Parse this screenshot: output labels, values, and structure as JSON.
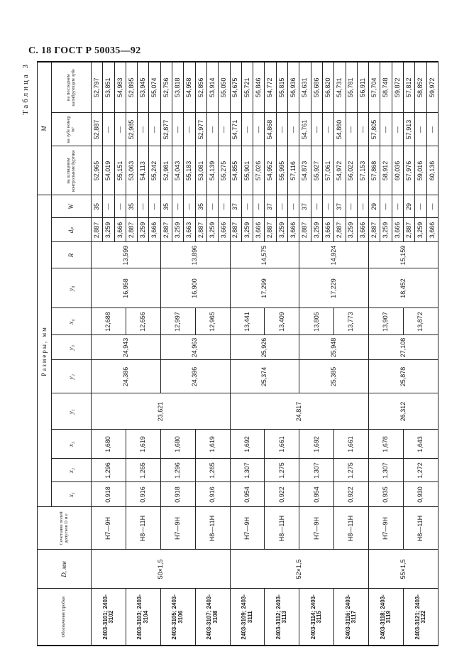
{
  "page_header": "С. 18 ГОСТ Р 50035—92",
  "table_caption": "Таблица 3",
  "headers": {
    "designation": "Обозначение пробки",
    "d": "D, мм",
    "tolerance": "Сочетание полей допусков D и e",
    "sizes_group": "Размеры, мм",
    "x1": "x₁",
    "x2": "x₂",
    "x3": "x₃",
    "y1": "y₁",
    "y2": "y₂",
    "y3": "y₃",
    "x4": "x₄",
    "y4": "y₄",
    "r": "R",
    "dp": "dₚ",
    "w": "W",
    "m_group": "M",
    "m1": "на шлицевом контрольном буртике",
    "m2": "на зубе номер W'",
    "m3": "на последнем калибрующем зубе"
  },
  "d_groups": [
    {
      "d": "50×1,5",
      "y1": "23,621"
    },
    {
      "d": "52×1,5",
      "y1": "24,817"
    },
    {
      "d": "55×1,5",
      "y1": "26,312"
    }
  ],
  "pairs": [
    {
      "y2": "24,386",
      "y3": "24,943",
      "y4": "16,958",
      "r": "13,599"
    },
    {
      "y2": "24,396",
      "y3": "24,963",
      "y4": "16,900",
      "r": "13,896"
    },
    {
      "y2": "25,374",
      "y3": "25,926",
      "y4": "17,299",
      "r": "14,575"
    },
    {
      "y2": "25,385",
      "y3": "25,948",
      "y4": "17,229",
      "r": "14,924"
    },
    {
      "y2": "25,878",
      "y3": "27,108",
      "y4": "18,452",
      "r": "15,159"
    }
  ],
  "groups": [
    {
      "designation": "2403-3101; 2403-3102",
      "tolerance": "H7—9H",
      "x1": "0,918",
      "x2": "1,296",
      "x3": "1,680",
      "x4": "12,688",
      "rows": [
        [
          "2,887",
          "35",
          "52,965",
          "52,887",
          "52,797"
        ],
        [
          "3,259",
          "—",
          "54,019",
          "—",
          "53,851"
        ],
        [
          "3,666",
          "—",
          "55,151",
          "—",
          "54,983"
        ]
      ]
    },
    {
      "designation": "2403-3103; 2403-3104",
      "tolerance": "H8—11H",
      "x1": "0,916",
      "x2": "1,265",
      "x3": "1,619",
      "x4": "12,656",
      "rows": [
        [
          "2,887",
          "35",
          "53,063",
          "52,985",
          "52,895"
        ],
        [
          "3,259",
          "—",
          "54,113",
          "—",
          "53,945"
        ],
        [
          "3,666",
          "—",
          "55,242",
          "—",
          "55,074"
        ]
      ]
    },
    {
      "designation": "2403-3105; 2403-3106",
      "tolerance": "H7—9H",
      "x1": "0,918",
      "x2": "1,296",
      "x3": "1,680",
      "x4": "12,997",
      "rows": [
        [
          "2,887",
          "35",
          "52,981",
          "52,877",
          "52,756"
        ],
        [
          "3,259",
          "—",
          "54,043",
          "—",
          "53,818"
        ],
        [
          "3,663",
          "—",
          "55,183",
          "—",
          "54,958"
        ]
      ]
    },
    {
      "designation": "2403-3107; 2403-3108",
      "tolerance": "H8—11H",
      "x1": "0,916",
      "x2": "1,265",
      "x3": "1,619",
      "x4": "12,965",
      "rows": [
        [
          "2,887",
          "35",
          "53,081",
          "52,977",
          "52,856"
        ],
        [
          "3,259",
          "—",
          "54,139",
          "—",
          "53,914"
        ],
        [
          "3,666",
          "—",
          "55,275",
          "—",
          "55,050"
        ]
      ]
    },
    {
      "designation": "2403-3109; 2403-3111",
      "tolerance": "H7—9H",
      "x1": "0,954",
      "x2": "1,307",
      "x3": "1,692",
      "x4": "13,441",
      "rows": [
        [
          "2,887",
          "37",
          "54,855",
          "54,771",
          "54,675"
        ],
        [
          "3,259",
          "—",
          "55,901",
          "—",
          "55,721"
        ],
        [
          "3,666",
          "—",
          "57,026",
          "—",
          "56,846"
        ]
      ]
    },
    {
      "designation": "2403-3112; 2403-3113",
      "tolerance": "H8—11H",
      "x1": "0,922",
      "x2": "1,275",
      "x3": "1,661",
      "x4": "13,409",
      "rows": [
        [
          "2,887",
          "37",
          "54,952",
          "54,868",
          "54,772"
        ],
        [
          "3,259",
          "—",
          "55,995",
          "—",
          "55,815"
        ],
        [
          "3,666",
          "—",
          "57,116",
          "—",
          "56,936"
        ]
      ]
    },
    {
      "designation": "2403-3114; 2403-3115",
      "tolerance": "H7—9H",
      "x1": "0,954",
      "x2": "1,307",
      "x3": "1,692",
      "x4": "13,805",
      "rows": [
        [
          "2,887",
          "37",
          "54,873",
          "54,761",
          "54,631"
        ],
        [
          "3,259",
          "—",
          "55,927",
          "—",
          "55,686"
        ],
        [
          "3,666",
          "—",
          "57,061",
          "—",
          "56,820"
        ]
      ]
    },
    {
      "designation": "2403-3116; 2403-3117",
      "tolerance": "H8—11H",
      "x1": "0,922",
      "x2": "1,275",
      "x3": "1,661",
      "x4": "13,773",
      "rows": [
        [
          "2,887",
          "37",
          "54,972",
          "54,860",
          "54,731"
        ],
        [
          "3,259",
          "—",
          "56,022",
          "—",
          "55,781"
        ],
        [
          "3,666",
          "—",
          "57,153",
          "—",
          "56,911"
        ]
      ]
    },
    {
      "designation": "2403-3118; 2403-3119",
      "tolerance": "H7—9H",
      "x1": "0,935",
      "x2": "1,307",
      "x3": "1,678",
      "x4": "13,907",
      "rows": [
        [
          "2,887",
          "29",
          "57,868",
          "57,805",
          "57,704"
        ],
        [
          "3,259",
          "—",
          "58,912",
          "—",
          "58,748"
        ],
        [
          "3,666",
          "—",
          "60,036",
          "—",
          "59,872"
        ]
      ]
    },
    {
      "designation": "2403-3121; 2403-3122",
      "tolerance": "H8—11H",
      "x1": "0,930",
      "x2": "1,272",
      "x3": "1,643",
      "x4": "13,872",
      "rows": [
        [
          "2,887",
          "29",
          "57,976",
          "57,913",
          "57,812"
        ],
        [
          "3,259",
          "—",
          "59,016",
          "—",
          "58,852"
        ],
        [
          "3,666",
          "—",
          "60,136",
          "—",
          "59,972"
        ]
      ]
    }
  ]
}
